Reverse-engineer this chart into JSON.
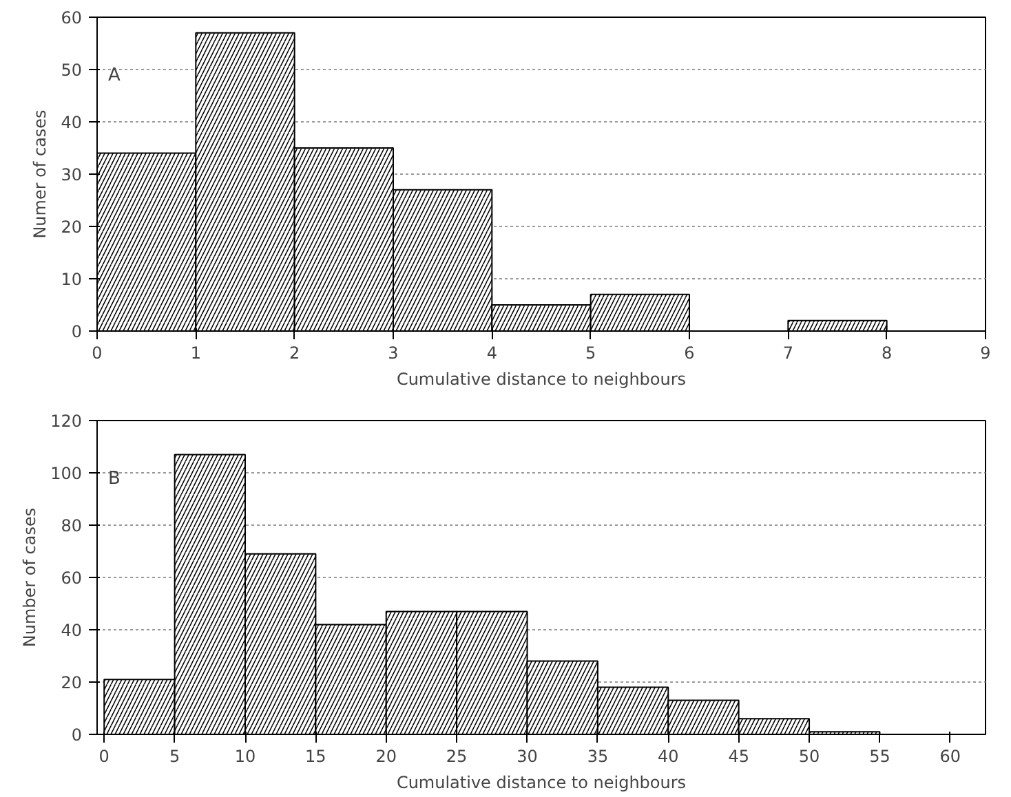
{
  "chart_data": [
    {
      "type": "histogram",
      "xlabel": "Cumulative distance to neighbours",
      "ylabel": "Numer of cases",
      "annotations": [
        "A"
      ],
      "bins": [
        0,
        1,
        2,
        3,
        4,
        5,
        6,
        7,
        8
      ],
      "values": [
        34,
        57,
        35,
        27,
        5,
        7,
        0,
        2
      ],
      "xlim": [
        0,
        9
      ],
      "xticks": [
        0,
        1,
        2,
        3,
        4,
        5,
        6,
        7,
        8,
        9
      ],
      "ylim": [
        0,
        60
      ],
      "yticks": [
        0,
        10,
        20,
        30,
        40,
        50,
        60
      ],
      "grid": "y"
    },
    {
      "type": "histogram",
      "xlabel": "Cumulative distance to neighbours",
      "ylabel": "Number of cases",
      "annotations": [
        "B"
      ],
      "bins": [
        0,
        5,
        10,
        15,
        20,
        25,
        30,
        35,
        40,
        45,
        50,
        55
      ],
      "values": [
        21,
        107,
        69,
        42,
        47,
        47,
        28,
        18,
        13,
        6,
        1
      ],
      "xlim": [
        -0.5,
        62.5
      ],
      "xticks": [
        0,
        5,
        10,
        15,
        20,
        25,
        30,
        35,
        40,
        45,
        50,
        55,
        60
      ],
      "ylim": [
        0,
        120
      ],
      "yticks": [
        0,
        20,
        40,
        60,
        80,
        100,
        120
      ],
      "grid": "y"
    }
  ]
}
